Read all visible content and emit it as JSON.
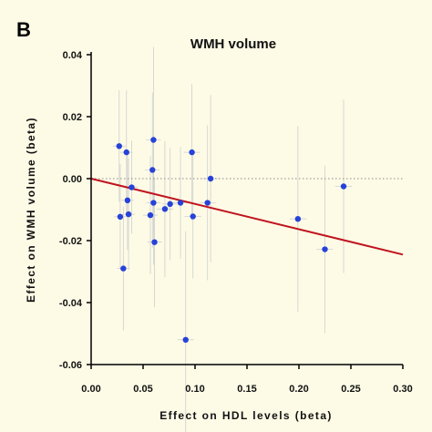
{
  "panel_label": "B",
  "chart_data": {
    "type": "scatter",
    "title": "WMH volume",
    "xlabel": "Effect on HDL levels (beta)",
    "ylabel": "Effect on WMH volume (beta)",
    "xlim": [
      0.0,
      0.3
    ],
    "ylim": [
      -0.06,
      0.04
    ],
    "x_ticks": [
      "0.00",
      "0.05",
      "0.10",
      "0.15",
      "0.20",
      "0.25",
      "0.30"
    ],
    "y_ticks": [
      "0.04",
      "0.02",
      "0.00",
      "-0.02",
      "-0.04",
      "-0.06"
    ],
    "reference_line_y": 0.0,
    "fit_line": {
      "x": [
        0.0,
        0.3
      ],
      "y": [
        0.0,
        -0.0245
      ],
      "color": "#c0141e"
    },
    "point_color": "#2742d8",
    "points": [
      {
        "x": 0.027,
        "y": 0.0105,
        "xerr": 0.006,
        "yerr": 0.018
      },
      {
        "x": 0.028,
        "y": -0.0123,
        "xerr": 0.006,
        "yerr": 0.017
      },
      {
        "x": 0.031,
        "y": -0.029,
        "xerr": 0.006,
        "yerr": 0.02
      },
      {
        "x": 0.034,
        "y": 0.0085,
        "xerr": 0.006,
        "yerr": 0.02
      },
      {
        "x": 0.035,
        "y": -0.007,
        "xerr": 0.006,
        "yerr": 0.016
      },
      {
        "x": 0.036,
        "y": -0.0115,
        "xerr": 0.006,
        "yerr": 0.018
      },
      {
        "x": 0.039,
        "y": -0.0028,
        "xerr": 0.006,
        "yerr": 0.015
      },
      {
        "x": 0.057,
        "y": -0.0118,
        "xerr": 0.007,
        "yerr": 0.019
      },
      {
        "x": 0.059,
        "y": 0.0028,
        "xerr": 0.007,
        "yerr": 0.025
      },
      {
        "x": 0.06,
        "y": 0.0125,
        "xerr": 0.007,
        "yerr": 0.03
      },
      {
        "x": 0.06,
        "y": -0.0078,
        "xerr": 0.007,
        "yerr": 0.02
      },
      {
        "x": 0.061,
        "y": -0.0205,
        "xerr": 0.007,
        "yerr": 0.021
      },
      {
        "x": 0.071,
        "y": -0.0098,
        "xerr": 0.008,
        "yerr": 0.022
      },
      {
        "x": 0.076,
        "y": -0.0082,
        "xerr": 0.008,
        "yerr": 0.018
      },
      {
        "x": 0.086,
        "y": -0.0078,
        "xerr": 0.008,
        "yerr": 0.018
      },
      {
        "x": 0.091,
        "y": -0.052,
        "xerr": 0.008,
        "yerr": 0.035
      },
      {
        "x": 0.097,
        "y": 0.0085,
        "xerr": 0.008,
        "yerr": 0.022
      },
      {
        "x": 0.098,
        "y": -0.0122,
        "xerr": 0.008,
        "yerr": 0.02
      },
      {
        "x": 0.112,
        "y": -0.0078,
        "xerr": 0.008,
        "yerr": 0.025
      },
      {
        "x": 0.115,
        "y": 0.0,
        "xerr": 0.008,
        "yerr": 0.027
      },
      {
        "x": 0.199,
        "y": -0.013,
        "xerr": 0.008,
        "yerr": 0.03
      },
      {
        "x": 0.225,
        "y": -0.0228,
        "xerr": 0.008,
        "yerr": 0.027
      },
      {
        "x": 0.243,
        "y": -0.0025,
        "xerr": 0.008,
        "yerr": 0.028
      }
    ]
  }
}
